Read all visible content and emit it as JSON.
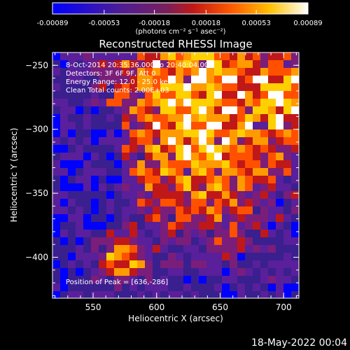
{
  "chart_data": {
    "type": "heatmap",
    "title": "Reconstructed RHESSI Image",
    "xlabel": "Heliocentric X (arcsec)",
    "ylabel": "Heliocentric Y (arcsec)",
    "xlim": [
      518,
      712
    ],
    "ylim": [
      -432,
      -240
    ],
    "x_ticks": [
      550,
      600,
      650,
      700
    ],
    "y_ticks": [
      -250,
      -300,
      -350,
      -400
    ],
    "colorbar": {
      "ticks": [
        "-0.00089",
        "-0.00053",
        "-0.00018",
        "0.00018",
        "0.00053",
        "0.00089"
      ],
      "unit_label": "(photons cm⁻² s⁻¹ asec⁻²)",
      "range": [
        -0.00089,
        0.00089
      ]
    },
    "annotations": [
      "8-Oct-2014 20:35:36.000 to 20:40:04.000",
      "Detectors: 3F 6F 9F, Att 0",
      "Energy Range: 12.0 - 25.0 keV",
      "Clean    Total counts: 2.00E+03",
      "Position of Peak = [636,-286]"
    ],
    "peak_position": [
      636,
      -286
    ],
    "colormap": [
      "#0000ff",
      "#3a1f8f",
      "#5a1f9a",
      "#7a1e7a",
      "#c01818",
      "#ff5000",
      "#ff9a00",
      "#ffd000",
      "#ffffff"
    ],
    "grid": false
  },
  "footer": {
    "timestamp": "18-May-2022 00:04"
  }
}
